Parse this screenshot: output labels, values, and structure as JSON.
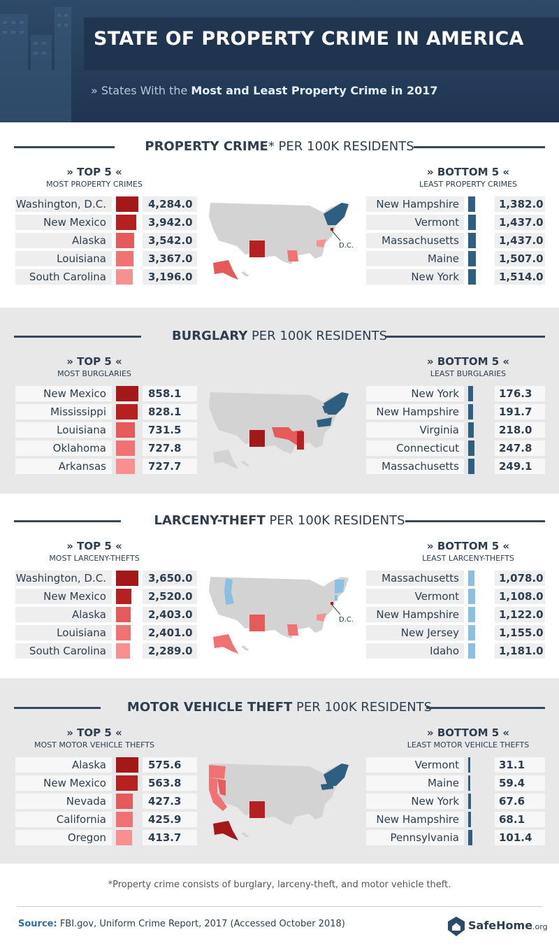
{
  "header": {
    "title": "STATE OF PROPERTY CRIME IN AMERICA",
    "subtitle_prefix": "» States With the ",
    "subtitle_bold": "Most and Least Property Crime in 2017"
  },
  "colors": {
    "top_shades": [
      "#a31919",
      "#b52121",
      "#e55a5a",
      "#f07272",
      "#f79090"
    ],
    "bottom_dark": "#2e5f80",
    "bottom_light": "#8cc0e2",
    "map_gray": "#d3d3d3"
  },
  "sections": [
    {
      "title_bold": "PROPERTY CRIME",
      "title_rest": "* PER 100K RESIDENTS",
      "top_label": "»  TOP 5  «",
      "top_sub": "MOST PROPERTY CRIMES",
      "bottom_label": "» BOTTOM 5 «",
      "bottom_sub": "LEAST PROPERTY CRIMES",
      "map_dc_label": "D.C."
    },
    {
      "title_bold": "BURGLARY",
      "title_rest": " PER 100K RESIDENTS",
      "top_label": "»  TOP 5  «",
      "top_sub": "MOST BURGLARIES",
      "bottom_label": "» BOTTOM 5 «",
      "bottom_sub": "LEAST BURGLARIES",
      "map_dc_label": ""
    },
    {
      "title_bold": "LARCENY-THEFT",
      "title_rest": " PER 100K RESIDENTS",
      "top_label": "»  TOP 5  «",
      "top_sub": "MOST LARCENY-THEFTS",
      "bottom_label": "» BOTTOM 5 «",
      "bottom_sub": "LEAST LARCENY-THEFTS",
      "map_dc_label": "D.C."
    },
    {
      "title_bold": "MOTOR VEHICLE THEFT",
      "title_rest": " PER 100K RESIDENTS",
      "top_label": "»  TOP 5  «",
      "top_sub": "MOST MOTOR VEHICLE THEFTS",
      "bottom_label": "» BOTTOM 5 «",
      "bottom_sub": "LEAST MOTOR VEHICLE THEFTS",
      "map_dc_label": ""
    }
  ],
  "chart_data": [
    {
      "type": "bar",
      "title": "PROPERTY CRIME* PER 100K RESIDENTS",
      "series": [
        {
          "name": "TOP 5",
          "categories": [
            "Washington, D.C.",
            "New Mexico",
            "Alaska",
            "Louisiana",
            "South Carolina"
          ],
          "values": [
            4284.0,
            3942.0,
            3542.0,
            3367.0,
            3196.0
          ],
          "labels": [
            "4,284.0",
            "3,942.0",
            "3,542.0",
            "3,367.0",
            "3,196.0"
          ]
        },
        {
          "name": "BOTTOM 5",
          "categories": [
            "New Hampshire",
            "Vermont",
            "Massachusetts",
            "Maine",
            "New York"
          ],
          "values": [
            1382.0,
            1437.0,
            1437.0,
            1507.0,
            1514.0
          ],
          "labels": [
            "1,382.0",
            "1,437.0",
            "1,437.0",
            "1,507.0",
            "1,514.0"
          ]
        }
      ]
    },
    {
      "type": "bar",
      "title": "BURGLARY PER 100K RESIDENTS",
      "series": [
        {
          "name": "TOP 5",
          "categories": [
            "New Mexico",
            "Mississippi",
            "Louisiana",
            "Oklahoma",
            "Arkansas"
          ],
          "values": [
            858.1,
            828.1,
            731.5,
            727.8,
            727.7
          ],
          "labels": [
            "858.1",
            "828.1",
            "731.5",
            "727.8",
            "727.7"
          ]
        },
        {
          "name": "BOTTOM 5",
          "categories": [
            "New York",
            "New Hampshire",
            "Virginia",
            "Connecticut",
            "Massachusetts"
          ],
          "values": [
            176.3,
            191.7,
            218.0,
            247.8,
            249.1
          ],
          "labels": [
            "176.3",
            "191.7",
            "218.0",
            "247.8",
            "249.1"
          ]
        }
      ]
    },
    {
      "type": "bar",
      "title": "LARCENY-THEFT PER 100K RESIDENTS",
      "series": [
        {
          "name": "TOP 5",
          "categories": [
            "Washington, D.C.",
            "New Mexico",
            "Alaska",
            "Louisiana",
            "South Carolina"
          ],
          "values": [
            3650.0,
            2520.0,
            2403.0,
            2401.0,
            2289.0
          ],
          "labels": [
            "3,650.0",
            "2,520.0",
            "2,403.0",
            "2,401.0",
            "2,289.0"
          ]
        },
        {
          "name": "BOTTOM 5",
          "categories": [
            "Massachusetts",
            "Vermont",
            "New Hampshire",
            "New Jersey",
            "Idaho"
          ],
          "values": [
            1078.0,
            1108.0,
            1122.0,
            1155.0,
            1181.0
          ],
          "labels": [
            "1,078.0",
            "1,108.0",
            "1,122.0",
            "1,155.0",
            "1,181.0"
          ]
        }
      ]
    },
    {
      "type": "bar",
      "title": "MOTOR VEHICLE THEFT PER 100K RESIDENTS",
      "series": [
        {
          "name": "TOP 5",
          "categories": [
            "Alaska",
            "New Mexico",
            "Nevada",
            "California",
            "Oregon"
          ],
          "values": [
            575.6,
            563.8,
            427.3,
            425.9,
            413.7
          ],
          "labels": [
            "575.6",
            "563.8",
            "427.3",
            "425.9",
            "413.7"
          ]
        },
        {
          "name": "BOTTOM 5",
          "categories": [
            "Vermont",
            "Maine",
            "New York",
            "New Hampshire",
            "Pennsylvania"
          ],
          "values": [
            31.1,
            59.4,
            67.6,
            68.1,
            101.4
          ],
          "labels": [
            "31.1",
            "59.4",
            "67.6",
            "68.1",
            "101.4"
          ]
        }
      ]
    }
  ],
  "footer": {
    "footnote": "*Property crime consists of burglary, larceny-theft, and motor vehicle theft.",
    "source_label": "Source:",
    "source_text": " FBI.gov, Uniform Crime Report, 2017 (Accessed October 2018)",
    "logo_main": "SafeHome",
    "logo_suffix": ".org"
  }
}
